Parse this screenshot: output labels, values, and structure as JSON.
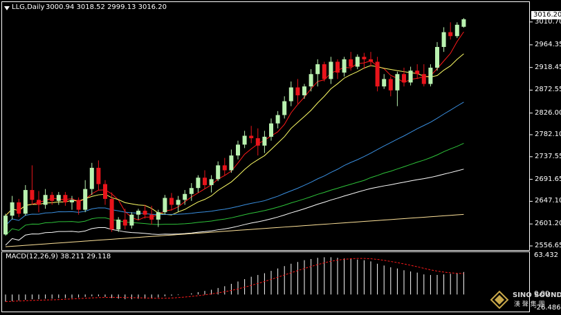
{
  "header": {
    "symbol": "LLG,Daily",
    "ohlc": "3000.94 3018.52 2999.13 3016.20"
  },
  "price_axis": {
    "current_price": "3016.20",
    "ticks": [
      "3010.70",
      "2964.35",
      "2918.45",
      "2872.55",
      "2826.00",
      "2782.10",
      "2737.55",
      "2691.65",
      "2647.10",
      "2601.20",
      "2556.65"
    ]
  },
  "macd": {
    "label": "MACD(12,26,9) 38.211 29.118",
    "axis_top": "63.432",
    "axis_zero": "0.00",
    "axis_bottom": "-26.486"
  },
  "watermark": {
    "brand_en": "SINO SOUND",
    "brand_cn": "漢 聲 集 團"
  },
  "colors": {
    "up": "#b9f2b0",
    "down": "#e8141b",
    "ma5": "#ff1a1a",
    "ma10": "#ffff66",
    "ma_blue": "#3a8fe0",
    "ma_green": "#2ec43a",
    "ma_white": "#ffffff",
    "ma_yellow2": "#ffe39a",
    "signal": "#ff1a1a"
  },
  "chart_data": {
    "type": "candlestick",
    "timeframe": "Daily",
    "candles": [
      [
        2580,
        2622,
        2578,
        2618
      ],
      [
        2618,
        2658,
        2610,
        2645
      ],
      [
        2645,
        2652,
        2615,
        2622
      ],
      [
        2622,
        2680,
        2618,
        2670
      ],
      [
        2670,
        2720,
        2640,
        2650
      ],
      [
        2650,
        2668,
        2625,
        2640
      ],
      [
        2640,
        2672,
        2632,
        2660
      ],
      [
        2660,
        2666,
        2640,
        2648
      ],
      [
        2648,
        2666,
        2640,
        2660
      ],
      [
        2660,
        2666,
        2638,
        2645
      ],
      [
        2645,
        2658,
        2630,
        2650
      ],
      [
        2650,
        2655,
        2620,
        2630
      ],
      [
        2630,
        2690,
        2625,
        2672
      ],
      [
        2672,
        2725,
        2660,
        2715
      ],
      [
        2715,
        2730,
        2670,
        2682
      ],
      [
        2682,
        2690,
        2640,
        2652
      ],
      [
        2652,
        2665,
        2585,
        2590
      ],
      [
        2590,
        2615,
        2585,
        2610
      ],
      [
        2610,
        2632,
        2590,
        2598
      ],
      [
        2598,
        2625,
        2592,
        2620
      ],
      [
        2620,
        2632,
        2610,
        2628
      ],
      [
        2628,
        2640,
        2612,
        2620
      ],
      [
        2620,
        2638,
        2600,
        2610
      ],
      [
        2610,
        2630,
        2595,
        2625
      ],
      [
        2625,
        2660,
        2620,
        2654
      ],
      [
        2654,
        2664,
        2628,
        2640
      ],
      [
        2640,
        2658,
        2625,
        2650
      ],
      [
        2650,
        2670,
        2640,
        2662
      ],
      [
        2662,
        2684,
        2648,
        2674
      ],
      [
        2674,
        2700,
        2665,
        2695
      ],
      [
        2695,
        2710,
        2672,
        2680
      ],
      [
        2680,
        2700,
        2665,
        2692
      ],
      [
        2692,
        2728,
        2688,
        2720
      ],
      [
        2720,
        2735,
        2700,
        2710
      ],
      [
        2710,
        2752,
        2705,
        2740
      ],
      [
        2740,
        2770,
        2732,
        2762
      ],
      [
        2762,
        2790,
        2755,
        2780
      ],
      [
        2780,
        2800,
        2765,
        2775
      ],
      [
        2775,
        2795,
        2740,
        2760
      ],
      [
        2760,
        2790,
        2745,
        2778
      ],
      [
        2778,
        2815,
        2770,
        2805
      ],
      [
        2805,
        2830,
        2795,
        2822
      ],
      [
        2822,
        2860,
        2815,
        2850
      ],
      [
        2850,
        2890,
        2840,
        2878
      ],
      [
        2878,
        2895,
        2845,
        2862
      ],
      [
        2862,
        2885,
        2855,
        2880
      ],
      [
        2880,
        2915,
        2870,
        2905
      ],
      [
        2905,
        2935,
        2880,
        2925
      ],
      [
        2925,
        2930,
        2890,
        2895
      ],
      [
        2895,
        2940,
        2885,
        2930
      ],
      [
        2930,
        2935,
        2895,
        2908
      ],
      [
        2908,
        2940,
        2900,
        2935
      ],
      [
        2935,
        2950,
        2912,
        2920
      ],
      [
        2920,
        2945,
        2915,
        2940
      ],
      [
        2940,
        2948,
        2915,
        2935
      ],
      [
        2935,
        2950,
        2920,
        2930
      ],
      [
        2930,
        2940,
        2870,
        2880
      ],
      [
        2880,
        2905,
        2875,
        2895
      ],
      [
        2895,
        2900,
        2860,
        2872
      ],
      [
        2872,
        2910,
        2840,
        2905
      ],
      [
        2905,
        2918,
        2880,
        2888
      ],
      [
        2888,
        2920,
        2882,
        2912
      ],
      [
        2912,
        2925,
        2895,
        2905
      ],
      [
        2905,
        2925,
        2880,
        2885
      ],
      [
        2885,
        2925,
        2880,
        2918
      ],
      [
        2918,
        2970,
        2912,
        2960
      ],
      [
        2960,
        3000,
        2950,
        2990
      ],
      [
        2990,
        3010,
        2975,
        2982
      ],
      [
        2982,
        3010,
        2978,
        3005
      ],
      [
        3000.94,
        3018.52,
        2999.13,
        3016.2
      ]
    ],
    "macd": {
      "histogram": [
        -12,
        -11,
        -10,
        -9,
        -8,
        -8,
        -7,
        -7,
        -6,
        -6,
        -6,
        -5,
        -4,
        -3,
        -3,
        -4,
        -6,
        -7,
        -8,
        -8,
        -7,
        -7,
        -6,
        -5,
        -3,
        -2,
        -1,
        0,
        2,
        4,
        6,
        8,
        11,
        14,
        18,
        22,
        26,
        30,
        33,
        36,
        40,
        44,
        48,
        52,
        55,
        58,
        60,
        62,
        63,
        63,
        62,
        61,
        60,
        59,
        58,
        56,
        52,
        49,
        46,
        44,
        41,
        39,
        37,
        34,
        33,
        33,
        34,
        35,
        36,
        38
      ]
    },
    "ylim": [
      2556.65,
      3030
    ]
  }
}
